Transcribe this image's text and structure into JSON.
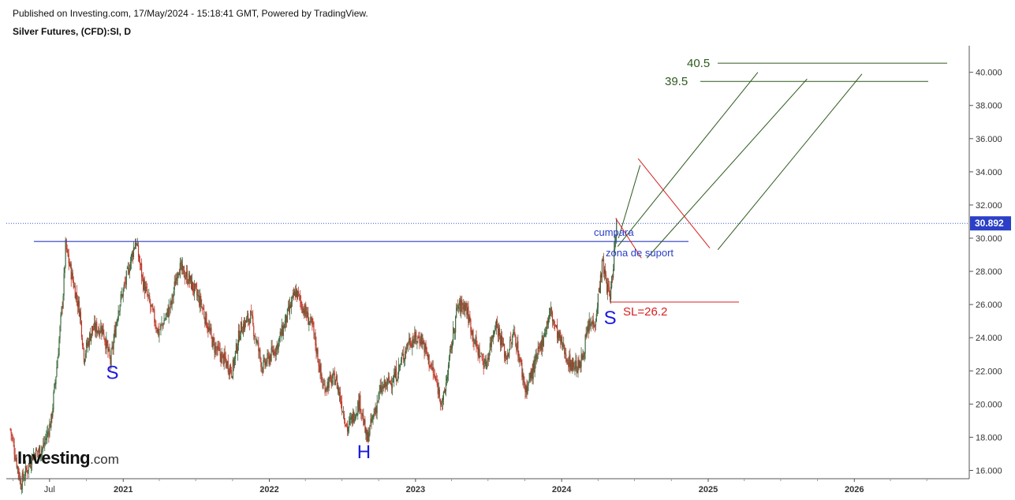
{
  "header": {
    "published": "Published on Investing.com, 17/May/2024 - 15:18:41 GMT, Powered by TradingView.",
    "symbol": "Silver Futures, (CFD):SI, D"
  },
  "logo": {
    "brand": "Investing",
    "tld": ".com"
  },
  "colors": {
    "up_candle": "#3f6b3f",
    "down_candle": "#c0392b",
    "support_line": "#2b3fc7",
    "last_price_line": "#3b5bd9",
    "last_price_badge": "#2b3fc7",
    "target_lines": "#2e5a1e",
    "stop_loss": "#d62020",
    "pattern_labels": "#1a1adf"
  },
  "chart_data": {
    "type": "candlestick",
    "y_axis": {
      "position": "right",
      "min": 15.5,
      "max": 41.6,
      "ticks": [
        "16.000",
        "18.000",
        "20.000",
        "22.000",
        "24.000",
        "26.000",
        "28.000",
        "30.000",
        "32.000",
        "34.000",
        "36.000",
        "38.000",
        "40.000"
      ]
    },
    "x_axis": {
      "ticks": [
        "Jul",
        "2021",
        "2022",
        "2023",
        "2024",
        "2025",
        "2026"
      ]
    },
    "grid": false,
    "last_price": "30.892",
    "price_path": [
      [
        "2020-03-25",
        18.5
      ],
      [
        "2020-04-20",
        15.2
      ],
      [
        "2020-05-20",
        16.9
      ],
      [
        "2020-06-15",
        17.4
      ],
      [
        "2020-07-05",
        19.0
      ],
      [
        "2020-07-20",
        22.5
      ],
      [
        "2020-08-05",
        27.0
      ],
      [
        "2020-08-10",
        29.5
      ],
      [
        "2020-08-25",
        27.8
      ],
      [
        "2020-09-15",
        25.5
      ],
      [
        "2020-09-25",
        22.9
      ],
      [
        "2020-10-15",
        24.5
      ],
      [
        "2020-11-10",
        24.6
      ],
      [
        "2020-11-30",
        22.5
      ],
      [
        "2020-12-20",
        25.8
      ],
      [
        "2021-01-05",
        27.2
      ],
      [
        "2021-02-01",
        29.9
      ],
      [
        "2021-02-20",
        27.3
      ],
      [
        "2021-03-30",
        24.3
      ],
      [
        "2021-05-01",
        26.0
      ],
      [
        "2021-05-18",
        28.3
      ],
      [
        "2021-06-15",
        27.5
      ],
      [
        "2021-07-15",
        26.0
      ],
      [
        "2021-08-15",
        23.5
      ],
      [
        "2021-09-30",
        22.0
      ],
      [
        "2021-10-20",
        24.5
      ],
      [
        "2021-11-15",
        25.3
      ],
      [
        "2021-12-15",
        22.2
      ],
      [
        "2022-01-20",
        23.5
      ],
      [
        "2022-03-08",
        26.8
      ],
      [
        "2022-04-20",
        24.5
      ],
      [
        "2022-05-15",
        21.0
      ],
      [
        "2022-06-15",
        21.6
      ],
      [
        "2022-07-15",
        18.5
      ],
      [
        "2022-08-15",
        20.2
      ],
      [
        "2022-09-01",
        17.8
      ],
      [
        "2022-10-05",
        20.8
      ],
      [
        "2022-11-15",
        21.8
      ],
      [
        "2022-12-15",
        23.8
      ],
      [
        "2023-01-15",
        24.0
      ],
      [
        "2023-02-15",
        21.8
      ],
      [
        "2023-03-10",
        20.0
      ],
      [
        "2023-04-15",
        25.8
      ],
      [
        "2023-05-05",
        26.0
      ],
      [
        "2023-06-01",
        23.5
      ],
      [
        "2023-06-25",
        22.3
      ],
      [
        "2023-07-20",
        25.0
      ],
      [
        "2023-08-15",
        22.8
      ],
      [
        "2023-09-05",
        24.3
      ],
      [
        "2023-10-03",
        20.8
      ],
      [
        "2023-11-01",
        22.8
      ],
      [
        "2023-12-04",
        25.6
      ],
      [
        "2023-12-20",
        24.3
      ],
      [
        "2024-01-20",
        22.5
      ],
      [
        "2024-02-15",
        22.2
      ],
      [
        "2024-03-08",
        24.6
      ],
      [
        "2024-03-25",
        25.1
      ],
      [
        "2024-04-12",
        28.5
      ],
      [
        "2024-04-24",
        27.0
      ],
      [
        "2024-05-02",
        26.5
      ],
      [
        "2024-05-17",
        30.9
      ]
    ]
  },
  "annotations": {
    "support_line_value": 29.8,
    "last_price_value": 30.892,
    "pattern_labels": [
      {
        "text": "S",
        "date": "2020-12-05",
        "value": 22.0
      },
      {
        "text": "H",
        "date": "2022-08-25",
        "value": 17.2
      },
      {
        "text": "S",
        "date": "2024-05-01",
        "value": 25.3
      }
    ],
    "labels": {
      "cumpara": "cumpara",
      "zona_suport": "zona de suport",
      "stop_loss": "SL=26.2",
      "target_1": "40.5",
      "target_2": "39.5"
    },
    "target_1_value": 40.55,
    "target_2_value": 39.45,
    "stop_loss_value": 26.15,
    "channel_lines": [
      [
        [
          "2024-05-20",
          29.5
        ],
        [
          "2025-05-05",
          40.0
        ]
      ],
      [
        [
          "2024-08-01",
          28.8
        ],
        [
          "2025-09-05",
          39.6
        ]
      ],
      [
        [
          "2025-01-25",
          29.3
        ],
        [
          "2026-01-20",
          39.9
        ]
      ],
      [
        [
          "2024-05-22",
          30.0
        ],
        [
          "2024-07-15",
          34.4
        ]
      ]
    ],
    "red_diagonals": [
      [
        [
          "2024-05-15",
          31.2
        ],
        [
          "2024-07-18",
          28.8
        ]
      ],
      [
        [
          "2024-07-10",
          34.8
        ],
        [
          "2025-01-05",
          29.4
        ]
      ]
    ]
  }
}
